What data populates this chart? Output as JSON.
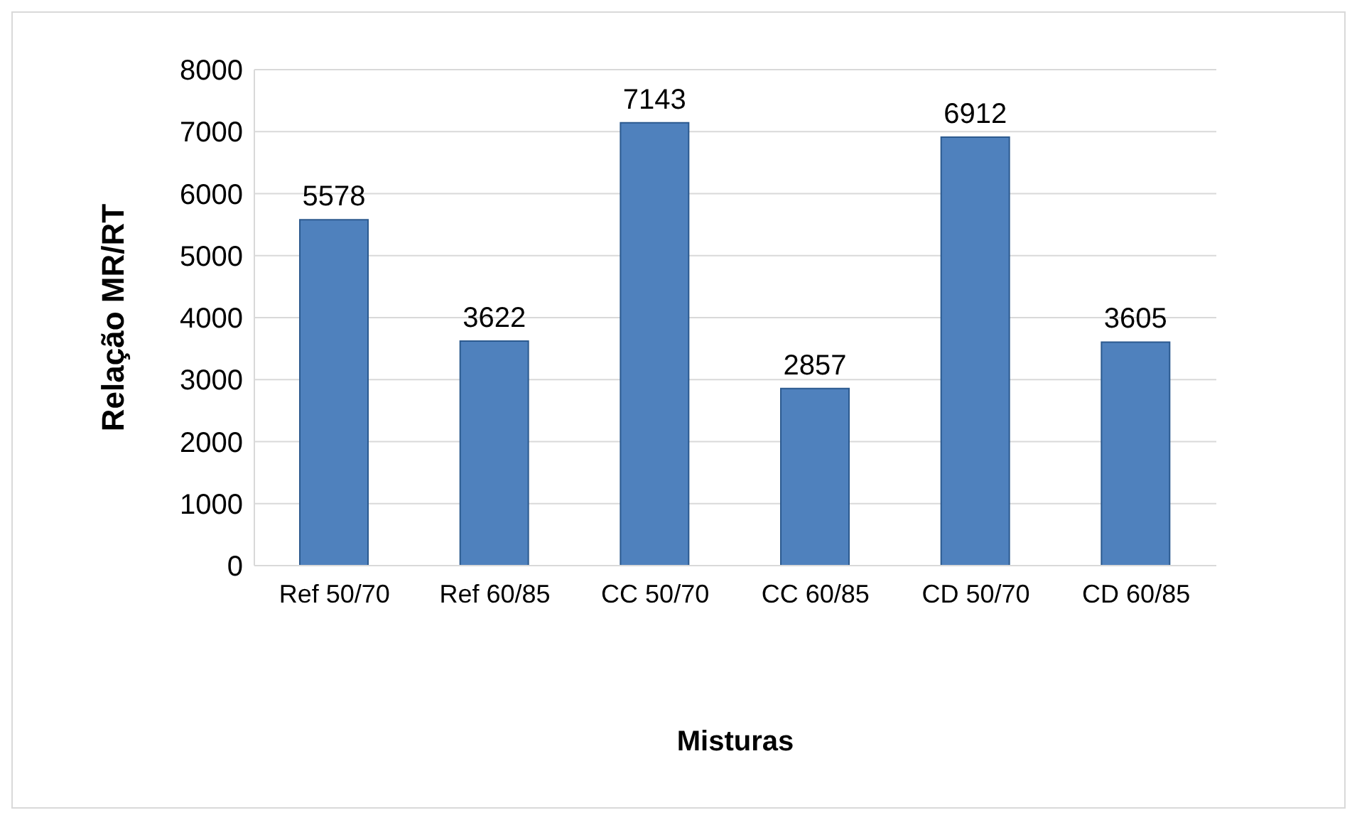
{
  "chart_data": {
    "type": "bar",
    "xlabel": "Misturas",
    "ylabel": "Relação MR/RT",
    "categories": [
      "Ref 50/70",
      "Ref 60/85",
      "CC 50/70",
      "CC 60/85",
      "CD 50/70",
      "CD 60/85"
    ],
    "values": [
      5578,
      3622,
      7143,
      2857,
      6912,
      3605
    ],
    "color": "#4f81bd",
    "ylim": [
      0,
      8000
    ],
    "yticks": [
      0,
      1000,
      2000,
      3000,
      4000,
      5000,
      6000,
      7000,
      8000
    ],
    "grid": "y",
    "data_labels": true
  }
}
